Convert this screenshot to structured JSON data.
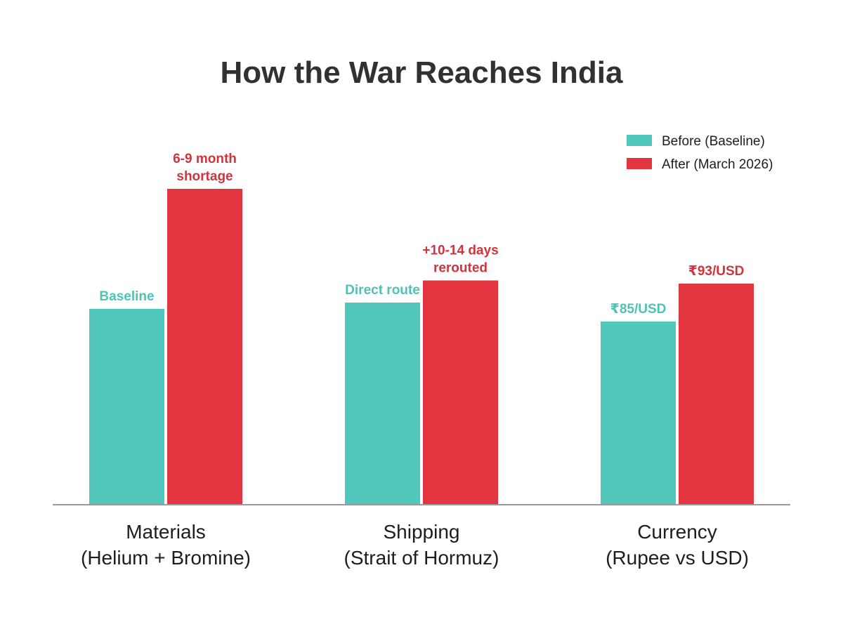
{
  "chart_data": {
    "type": "bar",
    "title": "How the War Reaches India",
    "xlabel": "",
    "ylabel": "",
    "ylim": [
      0,
      100
    ],
    "grid": false,
    "legend_position": "top-right",
    "categories": [
      [
        "Materials",
        "(Helium + Bromine)"
      ],
      [
        "Shipping",
        "(Strait of Hormuz)"
      ],
      [
        "Currency",
        "(Rupee vs USD)"
      ]
    ],
    "series": [
      {
        "name": "Before (Baseline)",
        "color": "#52c7bc",
        "label_color": "#4fc2b6",
        "values": [
          62,
          64,
          58
        ],
        "data_labels": [
          [
            "Baseline"
          ],
          [
            "Direct route"
          ],
          [
            "₹85/USD"
          ]
        ]
      },
      {
        "name": "After (March 2026)",
        "color": "#e2353f",
        "label_color": "#d1343d",
        "values": [
          100,
          71,
          70
        ],
        "data_labels": [
          [
            "6-9 month",
            "shortage"
          ],
          [
            "+10-14 days",
            "rerouted"
          ],
          [
            "₹93/USD"
          ]
        ]
      }
    ],
    "axis_color": "#9a9a9a"
  }
}
